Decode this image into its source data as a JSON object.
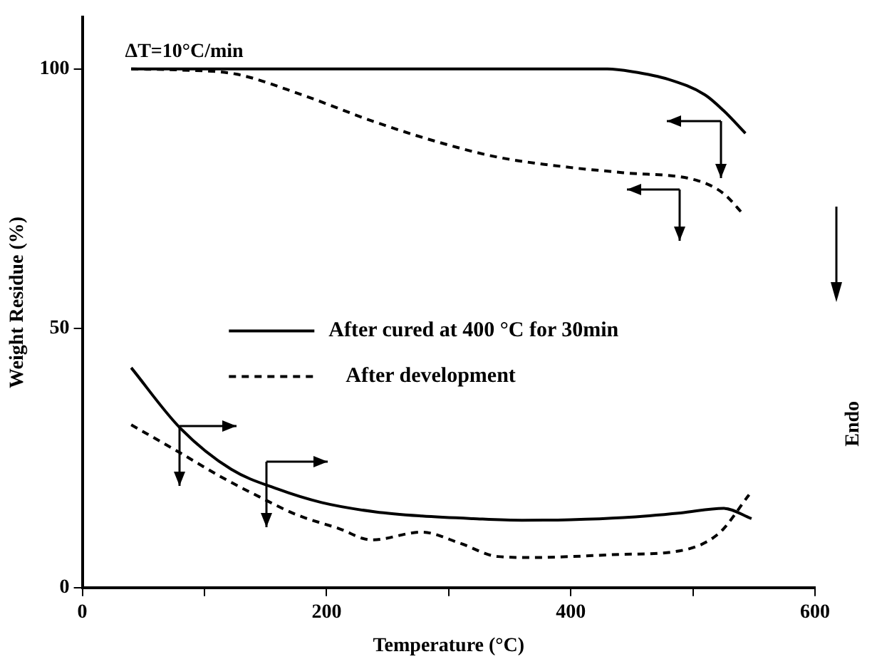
{
  "chart_data": {
    "type": "line",
    "xlabel": "Temperature (°C)",
    "ylabel": "Weight Residue (%)",
    "xlim": [
      0,
      600
    ],
    "xticks": [
      0,
      {
        "value": 100,
        "label": null
      },
      200,
      {
        "value": 300,
        "label": null
      },
      400,
      {
        "value": 500,
        "label": null
      },
      600
    ],
    "ylim": [
      0,
      110
    ],
    "yticks": [
      0,
      50,
      100
    ],
    "grid": false,
    "legend": "center right",
    "marker": "none",
    "annotations": [
      "ΔT=10°C/min",
      "Endo"
    ],
    "series": [
      {
        "name": "After cured at 400 °C for 30min",
        "color": "#000000",
        "line_style": "solid",
        "x": [
          40,
          150,
          300,
          430,
          450,
          480,
          510,
          525,
          543
        ],
        "values": [
          100,
          100,
          100,
          100,
          99.5,
          98,
          95,
          92,
          87.6
        ]
      },
      {
        "name": "After development",
        "color": "#000000",
        "line_style": "dashed",
        "x": [
          40,
          80,
          126,
          180,
          237,
          290,
          340,
          400,
          443,
          505,
          525,
          542
        ],
        "values": [
          100,
          99.8,
          99,
          95,
          90,
          86,
          83,
          81,
          80,
          78.4,
          76,
          71.8
        ]
      },
      {
        "color": "#000000",
        "line_style": "solid",
        "x": [
          40,
          80,
          122,
          160,
          196,
          240,
          278,
          320,
          360,
          400,
          443,
          490,
          525,
          548
        ],
        "values": [
          42.4,
          30.8,
          22.8,
          19,
          16.4,
          14.6,
          13.8,
          13.3,
          13,
          13.1,
          13.5,
          14.4,
          15.3,
          13.3
        ]
      },
      {
        "color": "#000000",
        "line_style": "dashed",
        "x": [
          40,
          80,
          114,
          145,
          175,
          210,
          237,
          278,
          310,
          340,
          370,
          401,
          440,
          484,
          521,
          546
        ],
        "values": [
          31.4,
          26,
          21.3,
          17.5,
          14.1,
          11.4,
          9.2,
          10.7,
          8.5,
          6,
          5.8,
          6,
          6.4,
          6.9,
          10.4,
          17.9
        ]
      }
    ]
  }
}
